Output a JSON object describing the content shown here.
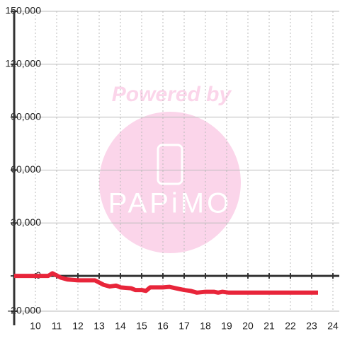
{
  "chart_data": {
    "type": "line",
    "watermark": [
      "Powered by",
      "PAPiMO"
    ],
    "x": [
      9,
      10.6,
      10.8,
      11.2,
      11.5,
      12,
      12.8,
      13.2,
      13.5,
      13.8,
      14,
      14.5,
      14.7,
      15,
      15.2,
      15.4,
      15.7,
      16,
      16.3,
      16.6,
      17,
      17.3,
      17.6,
      18,
      18.4,
      18.6,
      18.8,
      19.1,
      23.3
    ],
    "series": [
      {
        "color": "#e8253a",
        "values": [
          0,
          0,
          1500,
          -1000,
          -2000,
          -2500,
          -2500,
          -5000,
          -6000,
          -5500,
          -6500,
          -7000,
          -8000,
          -8000,
          -8500,
          -6500,
          -6500,
          -6500,
          -6200,
          -7000,
          -8000,
          -8500,
          -9500,
          -9000,
          -9000,
          -9500,
          -9000,
          -9500,
          -9500
        ]
      }
    ],
    "xlim": [
      9,
      24.3
    ],
    "xticks": [
      10,
      11,
      12,
      13,
      14,
      15,
      16,
      17,
      18,
      19,
      20,
      21,
      22,
      23,
      24
    ],
    "ylim": [
      -20000,
      150000
    ],
    "yticks": [
      {
        "value": -20000,
        "label": "-20,000"
      },
      0,
      {
        "value": 30000,
        "label": "30,000"
      },
      {
        "value": 60000,
        "label": "60,000"
      },
      {
        "value": 90000,
        "label": "90,000"
      },
      {
        "value": 120000,
        "label": "120,000"
      },
      {
        "value": 150000,
        "label": "150,000"
      }
    ],
    "grid": true
  }
}
